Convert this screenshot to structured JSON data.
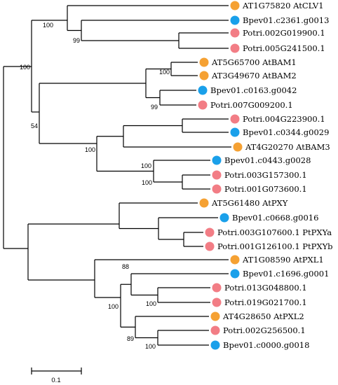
{
  "colors": {
    "Arabidopsis": "#f5a133",
    "Bpev": "#1aa0ea",
    "Potri": "#f27d85"
  },
  "leaves": [
    {
      "label": "AT1G75820 AtCLV1",
      "group": "Arabidopsis"
    },
    {
      "label": "Bpev01.c2361.g0013",
      "group": "Bpev"
    },
    {
      "label": "Potri.002G019900.1",
      "group": "Potri"
    },
    {
      "label": "Potri.005G241500.1",
      "group": "Potri"
    },
    {
      "label": "AT5G65700 AtBAM1",
      "group": "Arabidopsis"
    },
    {
      "label": "AT3G49670 AtBAM2",
      "group": "Arabidopsis"
    },
    {
      "label": "Bpev01.c0163.g0042",
      "group": "Bpev"
    },
    {
      "label": "Potri.007G009200.1",
      "group": "Potri"
    },
    {
      "label": "Potri.004G223900.1",
      "group": "Potri"
    },
    {
      "label": "Bpev01.c0344.g0029",
      "group": "Bpev"
    },
    {
      "label": "AT4G20270 AtBAM3",
      "group": "Arabidopsis"
    },
    {
      "label": "Bpev01.c0443.g0028",
      "group": "Bpev"
    },
    {
      "label": "Potri.003G157300.1",
      "group": "Potri"
    },
    {
      "label": "Potri.001G073600.1",
      "group": "Potri"
    },
    {
      "label": "AT5G61480 AtPXY",
      "group": "Arabidopsis"
    },
    {
      "label": "Bpev01.c0668.g0016",
      "group": "Bpev"
    },
    {
      "label": "Potri.003G107600.1 PtPXYa",
      "group": "Potri"
    },
    {
      "label": "Potri.001G126100.1 PtPXYb",
      "group": "Potri"
    },
    {
      "label": "AT1G08590 AtPXL1",
      "group": "Arabidopsis"
    },
    {
      "label": "Bpev01.c1696.g0001",
      "group": "Bpev"
    },
    {
      "label": "Potri.013G048800.1",
      "group": "Potri"
    },
    {
      "label": "Potri.019G021700.1",
      "group": "Potri"
    },
    {
      "label": "AT4G28650 AtPXL2",
      "group": "Arabidopsis"
    },
    {
      "label": "Potri.002G256500.1",
      "group": "Potri"
    },
    {
      "label": "Bpev01.c0000.g0018",
      "group": "Bpev"
    }
  ],
  "support_values": [
    "100",
    "99",
    "100",
    "100",
    "99",
    "54",
    "100",
    "100",
    "100",
    "88",
    "100",
    "100",
    "89"
  ],
  "scale_bar": {
    "label": "0.1"
  }
}
